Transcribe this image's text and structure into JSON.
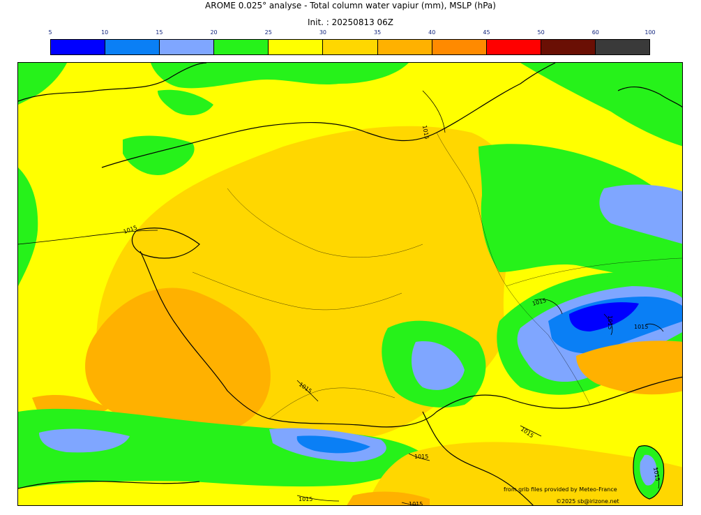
{
  "header": {
    "title": "AROME 0.025° analyse - Total column water vapiur (mm), MSLP (hPa)",
    "init": "Init. : 20250813 06Z"
  },
  "legend": {
    "ticks": [
      "5",
      "10",
      "15",
      "20",
      "25",
      "30",
      "35",
      "40",
      "45",
      "50",
      "60",
      "100"
    ],
    "colors": [
      "#0000ff",
      "#0a7ff5",
      "#7fa6ff",
      "#26f21a",
      "#ffff00",
      "#ffd700",
      "#ffb100",
      "#ff8a00",
      "#ff0000",
      "#6a0f04",
      "#3a3a3a"
    ]
  },
  "map": {
    "isobar_labels": [
      "1015",
      "1015",
      "1015",
      "1015",
      "1015",
      "1015",
      "1015",
      "1015",
      "1015",
      "1015",
      "1015"
    ],
    "fill_colors": {
      "green": "#26f21a",
      "yellow": "#ffff00",
      "gold": "#ffd700",
      "orange": "#ffb100",
      "lightblue": "#7fa6ff",
      "blue": "#0a7ff5",
      "darkblue": "#0000ff"
    }
  },
  "credits": {
    "source": "from grib files provided by Meteo-France",
    "copyright": "©2025 sb@irizone.net"
  }
}
